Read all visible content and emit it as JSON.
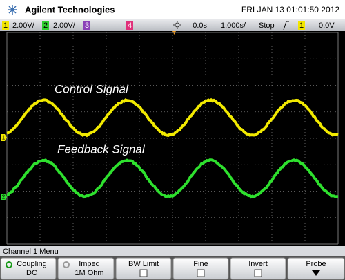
{
  "header": {
    "brand": "Agilent Technologies",
    "datetime": "FRI JAN 13 01:01:50 2012"
  },
  "status": {
    "ch1": "1",
    "ch1_scale": "2.00V/",
    "ch2": "2",
    "ch2_scale": "2.00V/",
    "ch3": "3",
    "ch4": "4",
    "time_delay": "0.0s",
    "time_scale": "1.000s/",
    "run_state": "Stop",
    "trigger_source": "1",
    "trigger_level": "0.0V"
  },
  "screen": {
    "labels": [
      "Control Signal",
      "Feedback Signal"
    ],
    "markers": [
      "1",
      "2"
    ]
  },
  "menu": {
    "title": "Channel 1 Menu",
    "softkeys": [
      {
        "label": "Coupling",
        "value": "DC"
      },
      {
        "label": "Imped",
        "value": "1M Ohm"
      },
      {
        "label": "BW Limit"
      },
      {
        "label": "Fine"
      },
      {
        "label": "Invert"
      },
      {
        "label": "Probe"
      }
    ]
  }
}
